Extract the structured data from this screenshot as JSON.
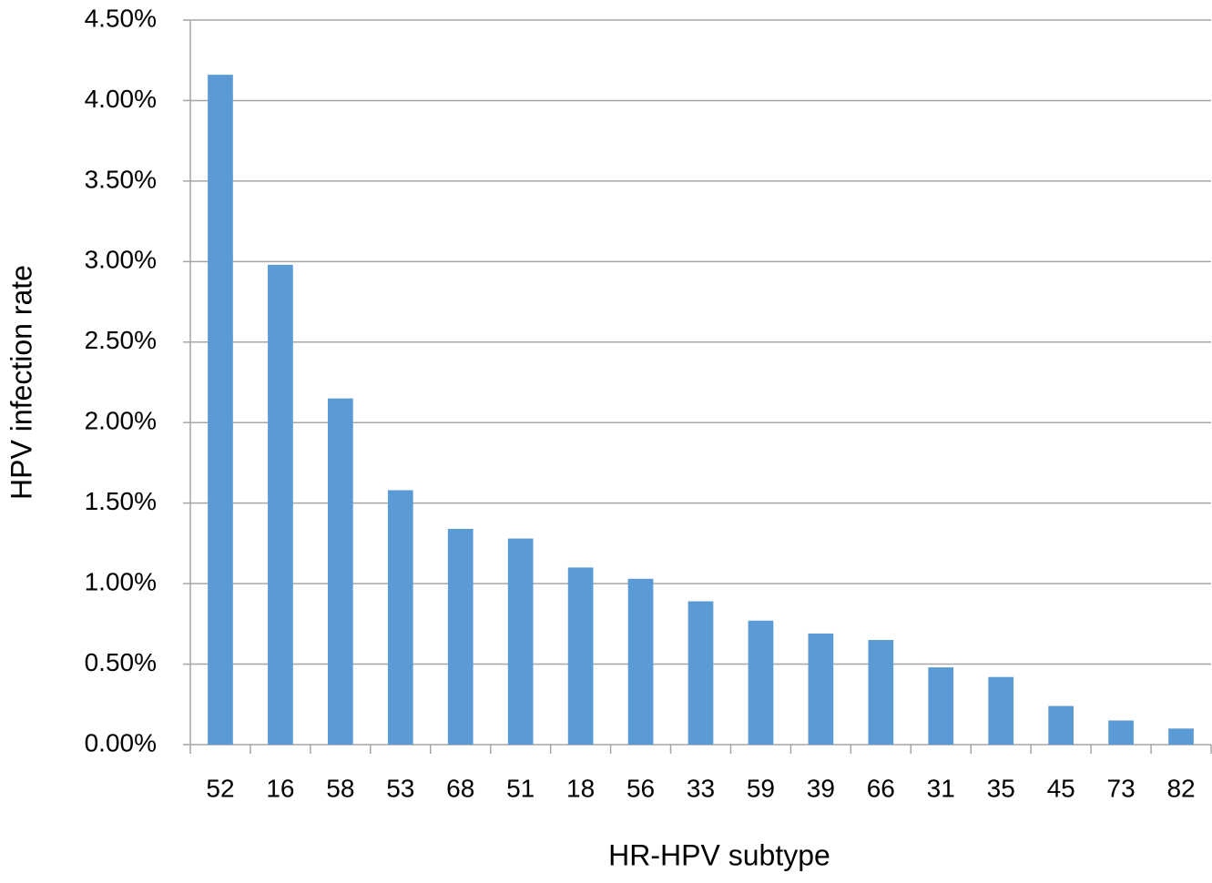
{
  "chart_data": {
    "type": "bar",
    "x_label": "HR-HPV subtype",
    "y_label": "HPV infection rate",
    "categories": [
      "52",
      "16",
      "58",
      "53",
      "68",
      "51",
      "18",
      "56",
      "33",
      "59",
      "39",
      "66",
      "31",
      "35",
      "45",
      "73",
      "82"
    ],
    "values": [
      4.16,
      2.98,
      2.15,
      1.58,
      1.34,
      1.28,
      1.1,
      1.03,
      0.89,
      0.77,
      0.69,
      0.65,
      0.48,
      0.42,
      0.24,
      0.15,
      0.1
    ],
    "color": "#5b9bd5",
    "ylim": [
      0,
      4.5
    ],
    "yticks": [
      {
        "value": 0,
        "label": "0.00%"
      },
      {
        "value": 0.5,
        "label": "0.50%"
      },
      {
        "value": 1,
        "label": "1.00%"
      },
      {
        "value": 1.5,
        "label": "1.50%"
      },
      {
        "value": 2,
        "label": "2.00%"
      },
      {
        "value": 2.5,
        "label": "2.50%"
      },
      {
        "value": 3,
        "label": "3.00%"
      },
      {
        "value": 3.5,
        "label": "3.50%"
      },
      {
        "value": 4,
        "label": "4.00%"
      },
      {
        "value": 4.5,
        "label": "4.50%"
      }
    ],
    "grid": true
  }
}
